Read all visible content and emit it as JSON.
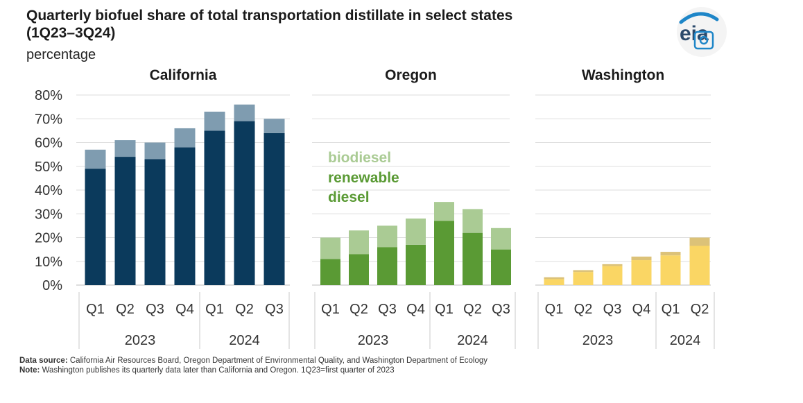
{
  "title_line1": "Quarterly biofuel share of total transportation distillate in select states",
  "title_line2": "(1Q23–3Q24)",
  "units": "percentage",
  "logo_text": "eia",
  "footer": {
    "source_label": "Data source:",
    "source_text": " California Air Resources Board, Oregon Department of Environmental Quality, and Washington Department of Ecology",
    "note_label": "Note:",
    "note_text": " Washington publishes its quarterly data later than California and Oregon. 1Q23=first quarter of 2023"
  },
  "legend": {
    "biodiesel": "biodiesel",
    "renewable_line1": "renewable",
    "renewable_line2": "diesel"
  },
  "chart_data": [
    {
      "type": "bar",
      "stacked": true,
      "title": "California",
      "categories": [
        "Q1",
        "Q2",
        "Q3",
        "Q4",
        "Q1",
        "Q2",
        "Q3"
      ],
      "year_groups": [
        {
          "label": "2023",
          "count": 4
        },
        {
          "label": "2024",
          "count": 3
        }
      ],
      "series": [
        {
          "name": "renewable diesel",
          "values": [
            49,
            54,
            53,
            58,
            65,
            69,
            64
          ],
          "color": "#0b3a5c"
        },
        {
          "name": "biodiesel",
          "values": [
            8,
            7,
            7,
            8,
            8,
            7,
            6
          ],
          "color": "#7f9cb0"
        }
      ],
      "ylim": [
        0,
        80
      ],
      "yticks": [
        "0%",
        "10%",
        "20%",
        "30%",
        "40%",
        "50%",
        "60%",
        "70%",
        "80%"
      ],
      "grid": true
    },
    {
      "type": "bar",
      "stacked": true,
      "title": "Oregon",
      "categories": [
        "Q1",
        "Q2",
        "Q3",
        "Q4",
        "Q1",
        "Q2",
        "Q3"
      ],
      "year_groups": [
        {
          "label": "2023",
          "count": 4
        },
        {
          "label": "2024",
          "count": 3
        }
      ],
      "series": [
        {
          "name": "renewable diesel",
          "values": [
            11,
            13,
            16,
            17,
            27,
            22,
            15
          ],
          "color": "#5a9a34"
        },
        {
          "name": "biodiesel",
          "values": [
            9,
            10,
            9,
            11,
            8,
            10,
            9
          ],
          "color": "#aacb94"
        }
      ],
      "ylim": [
        0,
        80
      ],
      "grid": true
    },
    {
      "type": "bar",
      "stacked": true,
      "title": "Washington",
      "categories": [
        "Q1",
        "Q2",
        "Q3",
        "Q4",
        "Q1",
        "Q2"
      ],
      "year_groups": [
        {
          "label": "2023",
          "count": 4
        },
        {
          "label": "2024",
          "count": 2
        }
      ],
      "series": [
        {
          "name": "renewable diesel",
          "values": [
            2.5,
            5.5,
            8,
            10.5,
            12.5,
            16.5
          ],
          "color": "#fad664"
        },
        {
          "name": "biodiesel",
          "values": [
            0.8,
            0.8,
            0.8,
            1.5,
            1.5,
            3.5
          ],
          "color": "#dcc278"
        }
      ],
      "ylim": [
        0,
        80
      ],
      "grid": true
    }
  ]
}
